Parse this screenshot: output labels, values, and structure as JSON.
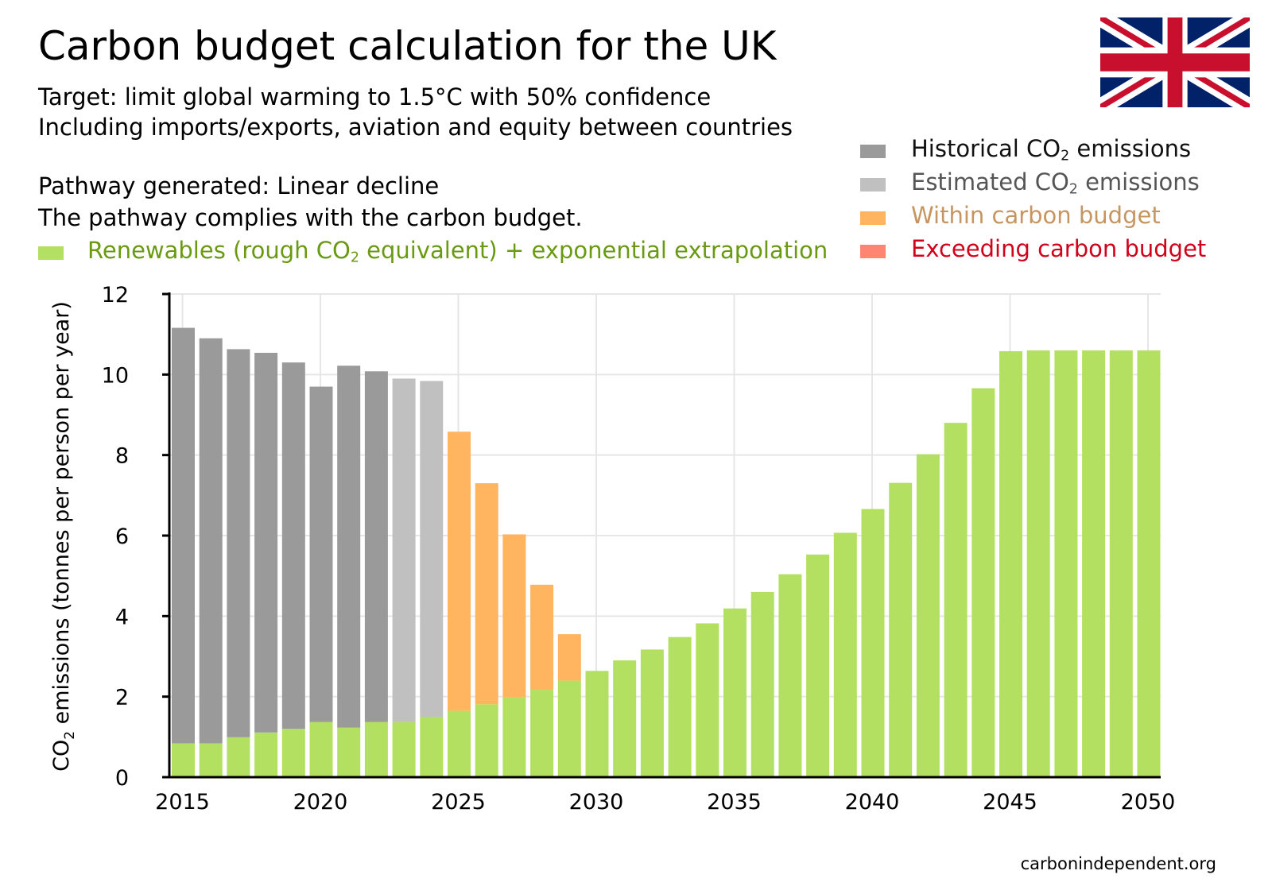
{
  "title": "Carbon budget calculation for the UK",
  "subtitle_lines": [
    "Target: limit global warming to 1.5°C with 50% confidence",
    "Including imports/exports, aviation and equity between countries"
  ],
  "pathway_lines": [
    "Pathway generated: Linear decline",
    "The pathway complies with the carbon budget."
  ],
  "legend": {
    "renewables": {
      "prefix": "Renewables (rough CO",
      "sub": "2",
      "suffix": " equivalent) + exponential extrapolation",
      "color": "#b3e061",
      "text_color": "#6a9a12"
    },
    "historical": {
      "prefix": "Historical CO",
      "sub": "2",
      "suffix": " emissions",
      "color": "#9a9a9a",
      "text_color": "#111111"
    },
    "estimated": {
      "prefix": "Estimated CO",
      "sub": "2",
      "suffix": " emissions",
      "color": "#c0c0c0",
      "text_color": "#555555"
    },
    "within": {
      "label": "Within carbon budget",
      "color": "#ffb45f",
      "text_color": "#c79660"
    },
    "exceeding": {
      "label": "Exceeding carbon budget",
      "color": "#fe8572",
      "text_color": "#d0021b"
    }
  },
  "flag": {
    "name": "UK flag",
    "blue": "#012169",
    "red": "#c8102e",
    "white": "#ffffff"
  },
  "footer": "carbonindependent.org",
  "chart_data": {
    "type": "bar",
    "stacked": true,
    "title": "Carbon budget calculation for the UK",
    "xlabel": "",
    "ylabel_prefix": "CO",
    "ylabel_sub": "2",
    "ylabel_suffix": " emissions (tonnes per person per year)",
    "ylim": [
      0,
      12
    ],
    "yticks": [
      0,
      2,
      4,
      6,
      8,
      10,
      12
    ],
    "xticks": [
      2015,
      2020,
      2025,
      2030,
      2035,
      2040,
      2045,
      2050
    ],
    "grid": true,
    "years": [
      2015,
      2016,
      2017,
      2018,
      2019,
      2020,
      2021,
      2022,
      2023,
      2024,
      2025,
      2026,
      2027,
      2028,
      2029,
      2030,
      2031,
      2032,
      2033,
      2034,
      2035,
      2036,
      2037,
      2038,
      2039,
      2040,
      2041,
      2042,
      2043,
      2044,
      2045,
      2046,
      2047,
      2048,
      2049,
      2050
    ],
    "series": [
      {
        "name": "Renewables (rough CO2 equivalent) + exponential extrapolation",
        "key": "renewables",
        "values": [
          0.84,
          0.84,
          0.99,
          1.11,
          1.2,
          1.37,
          1.23,
          1.37,
          1.37,
          1.5,
          1.65,
          1.81,
          1.99,
          2.17,
          2.4,
          2.64,
          2.9,
          3.17,
          3.48,
          3.82,
          4.19,
          4.6,
          5.04,
          5.53,
          6.07,
          6.66,
          7.31,
          8.02,
          8.8,
          9.66,
          10.58,
          10.6,
          10.6,
          10.6,
          10.6,
          10.6
        ]
      },
      {
        "name": "Historical CO2 emissions",
        "key": "historical",
        "values": [
          10.32,
          10.06,
          9.64,
          9.43,
          9.1,
          8.33,
          8.99,
          8.71,
          0,
          0,
          0,
          0,
          0,
          0,
          0,
          0,
          0,
          0,
          0,
          0,
          0,
          0,
          0,
          0,
          0,
          0,
          0,
          0,
          0,
          0,
          0,
          0,
          0,
          0,
          0,
          0
        ]
      },
      {
        "name": "Estimated CO2 emissions",
        "key": "estimated",
        "values": [
          0,
          0,
          0,
          0,
          0,
          0,
          0,
          0,
          8.53,
          8.34,
          0,
          0,
          0,
          0,
          0,
          0,
          0,
          0,
          0,
          0,
          0,
          0,
          0,
          0,
          0,
          0,
          0,
          0,
          0,
          0,
          0,
          0,
          0,
          0,
          0,
          0
        ]
      },
      {
        "name": "Within carbon budget",
        "key": "within",
        "values": [
          0,
          0,
          0,
          0,
          0,
          0,
          0,
          0,
          0,
          0,
          6.93,
          5.49,
          4.04,
          2.61,
          1.15,
          0,
          0,
          0,
          0,
          0,
          0,
          0,
          0,
          0,
          0,
          0,
          0,
          0,
          0,
          0,
          0,
          0,
          0,
          0,
          0,
          0
        ]
      },
      {
        "name": "Exceeding carbon budget",
        "key": "exceeding",
        "values": [
          0,
          0,
          0,
          0,
          0,
          0,
          0,
          0,
          0,
          0,
          0,
          0,
          0,
          0,
          0,
          0,
          0,
          0,
          0,
          0,
          0,
          0,
          0,
          0,
          0,
          0,
          0,
          0,
          0,
          0,
          0,
          0,
          0,
          0,
          0,
          0
        ]
      }
    ]
  }
}
